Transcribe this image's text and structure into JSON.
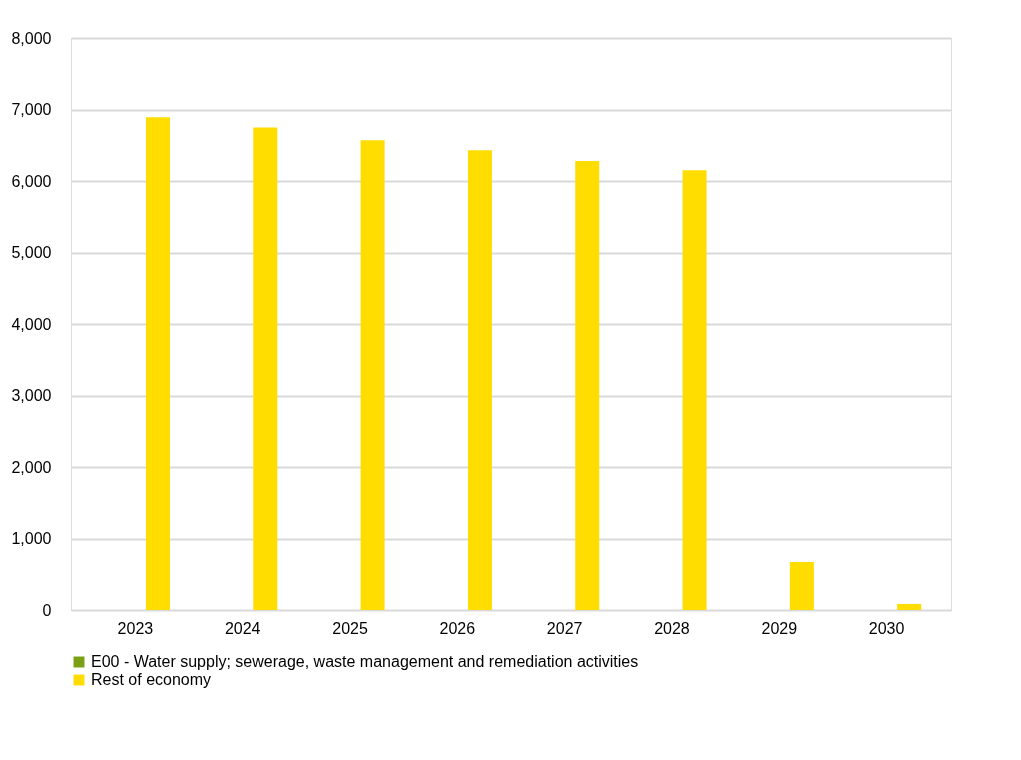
{
  "chart_data": {
    "type": "bar",
    "categories": [
      "2023",
      "2024",
      "2025",
      "2026",
      "2027",
      "2028",
      "2029",
      "2030"
    ],
    "series": [
      {
        "name": "E00 - Water supply; sewerage, waste management and remediation activities",
        "color": "#7aa116",
        "values": [
          0,
          0,
          0,
          0,
          0,
          0,
          0,
          0
        ]
      },
      {
        "name": "Rest of economy",
        "color": "#ffdd00",
        "values": [
          6890,
          6750,
          6570,
          6430,
          6280,
          6150,
          670,
          85
        ]
      }
    ],
    "ylim": [
      0,
      8000
    ],
    "yticks": [
      {
        "value": 0,
        "label": "0"
      },
      {
        "value": 1000,
        "label": "1,000"
      },
      {
        "value": 2000,
        "label": "2,000"
      },
      {
        "value": 3000,
        "label": "3,000"
      },
      {
        "value": 4000,
        "label": "4,000"
      },
      {
        "value": 5000,
        "label": "5,000"
      },
      {
        "value": 6000,
        "label": "6,000"
      },
      {
        "value": 7000,
        "label": "7,000"
      },
      {
        "value": 8000,
        "label": "8,000"
      }
    ],
    "grid": "y",
    "legend": "bottom"
  }
}
